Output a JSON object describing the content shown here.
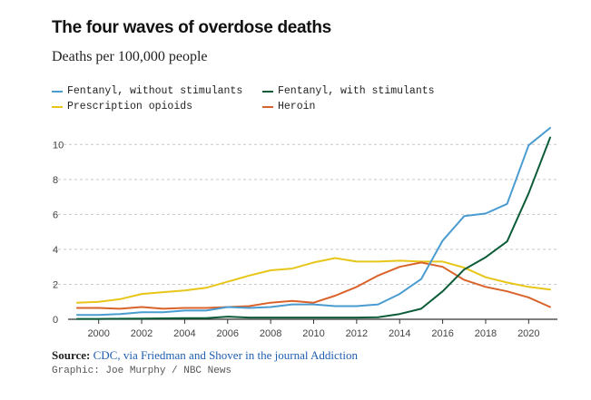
{
  "chart_data": {
    "type": "line",
    "title": "The four waves of overdose deaths",
    "subtitle": "Deaths per 100,000 people",
    "xlabel": "",
    "ylabel": "",
    "xlim": [
      1999,
      2021
    ],
    "ylim": [
      0,
      11
    ],
    "x_ticks": [
      2000,
      2002,
      2004,
      2006,
      2008,
      2010,
      2012,
      2014,
      2016,
      2018,
      2020
    ],
    "y_ticks": [
      0,
      2,
      4,
      6,
      8,
      10
    ],
    "grid": true,
    "x": [
      1999,
      2000,
      2001,
      2002,
      2003,
      2004,
      2005,
      2006,
      2007,
      2008,
      2009,
      2010,
      2011,
      2012,
      2013,
      2014,
      2015,
      2016,
      2017,
      2018,
      2019,
      2020,
      2021
    ],
    "series": [
      {
        "name": "Fentanyl, without stimulants",
        "color": "#4a9cd0",
        "values": [
          0.25,
          0.25,
          0.3,
          0.4,
          0.4,
          0.5,
          0.5,
          0.7,
          0.65,
          0.7,
          0.85,
          0.85,
          0.75,
          0.75,
          0.85,
          1.45,
          2.3,
          4.5,
          5.9,
          6.05,
          6.6,
          9.95,
          10.95
        ]
      },
      {
        "name": "Fentanyl, with stimulants",
        "color": "#0d5c38",
        "values": [
          0.02,
          0.02,
          0.03,
          0.04,
          0.05,
          0.06,
          0.07,
          0.15,
          0.1,
          0.1,
          0.1,
          0.1,
          0.1,
          0.1,
          0.12,
          0.3,
          0.6,
          1.6,
          2.85,
          3.55,
          4.45,
          7.2,
          10.4
        ]
      },
      {
        "name": "Prescription opioids",
        "color": "#e8c619",
        "values": [
          0.95,
          1.0,
          1.15,
          1.45,
          1.55,
          1.65,
          1.8,
          2.15,
          2.5,
          2.8,
          2.9,
          3.25,
          3.5,
          3.3,
          3.3,
          3.35,
          3.3,
          3.3,
          2.95,
          2.4,
          2.1,
          1.85,
          1.7
        ]
      },
      {
        "name": "Heroin",
        "color": "#d9632a",
        "values": [
          0.65,
          0.65,
          0.6,
          0.7,
          0.6,
          0.65,
          0.65,
          0.7,
          0.75,
          0.95,
          1.05,
          0.95,
          1.35,
          1.85,
          2.5,
          3.0,
          3.25,
          3.0,
          2.25,
          1.85,
          1.6,
          1.25,
          0.7
        ]
      }
    ]
  },
  "legend_layout": [
    {
      "series_index": 0,
      "row": 0,
      "col": 0
    },
    {
      "series_index": 1,
      "row": 0,
      "col": 1
    },
    {
      "series_index": 2,
      "row": 1,
      "col": 0
    },
    {
      "series_index": 3,
      "row": 1,
      "col": 1
    }
  ],
  "footer": {
    "source_label": "Source:",
    "source_text": "CDC, via Friedman and Shover in the journal Addiction",
    "credit": "Graphic: Joe Murphy / NBC News"
  },
  "colors": {
    "grid": "#c8c8c8",
    "axis": "#333333",
    "link": "#1f5fb0"
  }
}
